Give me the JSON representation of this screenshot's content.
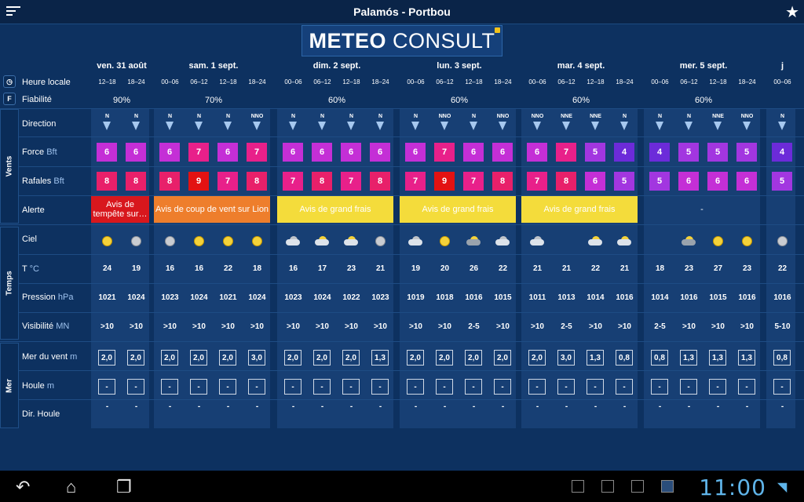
{
  "header": {
    "title": "Palamós - Portbou",
    "menu_icon": "menu-icon",
    "star_icon": "star-icon"
  },
  "logo": {
    "part1": "METEO",
    "part2": "CONSULT"
  },
  "days": [
    {
      "label": "ven. 31 août",
      "slots": [
        "12–18",
        "18–24"
      ]
    },
    {
      "label": "sam. 1 sept.",
      "slots": [
        "00–06",
        "06–12",
        "12–18",
        "18–24"
      ]
    },
    {
      "label": "dim. 2 sept.",
      "slots": [
        "00–06",
        "06–12",
        "12–18",
        "18–24"
      ]
    },
    {
      "label": "lun. 3 sept.",
      "slots": [
        "00–06",
        "06–12",
        "12–18",
        "18–24"
      ]
    },
    {
      "label": "mar. 4 sept.",
      "slots": [
        "00–06",
        "06–12",
        "12–18",
        "18–24"
      ]
    },
    {
      "label": "mer. 5 sept.",
      "slots": [
        "00–06",
        "06–12",
        "12–18",
        "18–24"
      ]
    },
    {
      "label": "j",
      "slots": [
        "00–06"
      ]
    }
  ],
  "reliability": [
    "90%",
    "70%",
    "60%",
    "60%",
    "60%",
    "60%"
  ],
  "row_labels": {
    "heure": "Heure locale",
    "fiab": "Fiabilité",
    "direction": "Direction",
    "force": "Force",
    "force_u": "Bft",
    "rafales": "Rafales",
    "rafales_u": "Bft",
    "alerte": "Alerte",
    "ciel": "Ciel",
    "temp": "T",
    "temp_u": "°C",
    "pression": "Pression",
    "pression_u": "hPa",
    "visi": "Visibilité",
    "visi_u": "MN",
    "mer_vent": "Mer du vent",
    "mer_vent_u": "m",
    "houle": "Houle",
    "houle_u": "m",
    "dir_houle": "Dir. Houle"
  },
  "side": {
    "vents": "Vents",
    "temps": "Temps",
    "mer": "Mer",
    "clock_icon": "clock-icon",
    "f_icon": "F"
  },
  "direction": [
    "N",
    "N",
    "N",
    "N",
    "N",
    "NNO",
    "N",
    "N",
    "N",
    "N",
    "N",
    "NNO",
    "N",
    "NNO",
    "NNO",
    "NNE",
    "NNE",
    "N",
    "N",
    "N",
    "NNE",
    "NNO",
    "N"
  ],
  "force": [
    "6",
    "6",
    "6",
    "7",
    "6",
    "7",
    "6",
    "6",
    "6",
    "6",
    "6",
    "7",
    "6",
    "6",
    "6",
    "7",
    "5",
    "4",
    "4",
    "5",
    "5",
    "5",
    "4"
  ],
  "rafales": [
    "8",
    "8",
    "8",
    "9",
    "7",
    "8",
    "7",
    "8",
    "7",
    "8",
    "7",
    "9",
    "7",
    "8",
    "7",
    "8",
    "6",
    "5",
    "5",
    "6",
    "6",
    "6",
    "5"
  ],
  "alerts": [
    {
      "text": "Avis de tempête sur…",
      "color": "#d8171d"
    },
    {
      "text": "Avis de coup de vent sur Lion",
      "color": "#ee7e2c"
    },
    {
      "text": "Avis de grand frais",
      "color": "#f4dc3b"
    },
    {
      "text": "Avis de grand frais",
      "color": "#f4dc3b"
    },
    {
      "text": "Avis de grand frais",
      "color": "#f4dc3b"
    },
    {
      "text": "-",
      "color": "none"
    },
    {
      "text": "",
      "color": "none"
    }
  ],
  "sky": [
    "sun",
    "moon",
    "moon",
    "sun",
    "sun",
    "sun",
    "cloudmoon",
    "cloudsun",
    "cloudsun",
    "moon",
    "cloudmoon",
    "sun",
    "storm",
    "cloudmoon",
    "cloudmoon",
    "",
    "cloudsun",
    "cloudsun",
    "",
    "storm",
    "sun",
    "sun",
    "moon"
  ],
  "temp": [
    "24",
    "19",
    "16",
    "16",
    "22",
    "18",
    "16",
    "17",
    "23",
    "21",
    "19",
    "20",
    "26",
    "22",
    "21",
    "21",
    "22",
    "21",
    "18",
    "23",
    "27",
    "23",
    "22"
  ],
  "pression": [
    "1021",
    "1024",
    "1023",
    "1024",
    "1021",
    "1024",
    "1023",
    "1024",
    "1022",
    "1023",
    "1019",
    "1018",
    "1016",
    "1015",
    "1011",
    "1013",
    "1014",
    "1016",
    "1014",
    "1016",
    "1015",
    "1016",
    "1016"
  ],
  "visi": [
    ">10",
    ">10",
    ">10",
    ">10",
    ">10",
    ">10",
    ">10",
    ">10",
    ">10",
    ">10",
    ">10",
    ">10",
    "2-5",
    ">10",
    ">10",
    "2-5",
    ">10",
    ">10",
    "2-5",
    ">10",
    ">10",
    ">10",
    "5-10"
  ],
  "mer_vent": [
    "2,0",
    "2,0",
    "2,0",
    "2,0",
    "2,0",
    "3,0",
    "2,0",
    "2,0",
    "2,0",
    "1,3",
    "2,0",
    "2,0",
    "2,0",
    "2,0",
    "2,0",
    "3,0",
    "1,3",
    "0,8",
    "0,8",
    "1,3",
    "1,3",
    "1,3",
    "0,8"
  ],
  "houle": [
    "-",
    "-",
    "-",
    "-",
    "-",
    "-",
    "-",
    "-",
    "-",
    "-",
    "-",
    "-",
    "-",
    "-",
    "-",
    "-",
    "-",
    "-",
    "-",
    "-",
    "-",
    "-",
    "-"
  ],
  "dir_houle": [
    "-",
    "-",
    "-",
    "-",
    "-",
    "-",
    "-",
    "-",
    "-",
    "-",
    "-",
    "-",
    "-",
    "-",
    "-",
    "-",
    "-",
    "-",
    "-",
    "-",
    "-",
    "-",
    "-"
  ],
  "colors": {
    "f4": "#6c2bd9",
    "f5": "#a236e0",
    "f6": "#c42fd6",
    "f7": "#e8208a",
    "f8": "#e8206a",
    "f9": "#e31212"
  },
  "statusbar": {
    "time": "11:00"
  },
  "nav": {
    "back": "back-icon",
    "home": "home-icon",
    "recent": "recent-apps-icon"
  }
}
